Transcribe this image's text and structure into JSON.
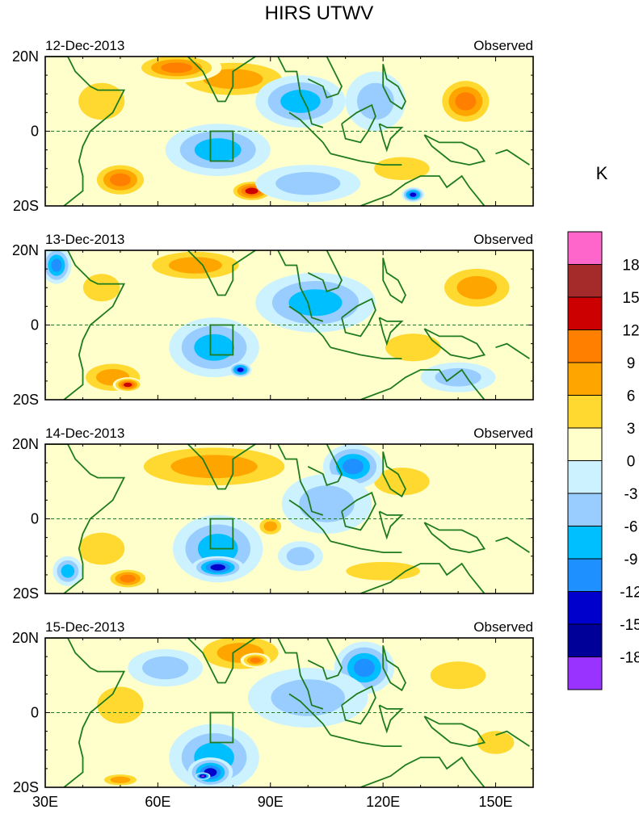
{
  "chart_data": {
    "type": "heatmap",
    "title": "HIRS UTWV",
    "x_ticks": [
      "30E",
      "60E",
      "90E",
      "120E",
      "150E"
    ],
    "x_tick_values": [
      30,
      60,
      90,
      120,
      150
    ],
    "xlim": [
      30,
      160
    ],
    "y_ticks": [
      "20N",
      "0",
      "20S"
    ],
    "y_tick_values": [
      20,
      0,
      -20
    ],
    "ylim": [
      -20,
      20
    ],
    "colorbar": {
      "unit": "K",
      "levels": [
        "18",
        "15",
        "12",
        "9",
        "6",
        "3",
        "0",
        "-3",
        "-6",
        "-9",
        "-12",
        "-15",
        "-18"
      ],
      "colors": [
        "#ff66cc",
        "#a52a2a",
        "#cc0000",
        "#ff7f00",
        "#ffa500",
        "#ffd92f",
        "#ffffcc",
        "#ccf2ff",
        "#99ccff",
        "#00bfff",
        "#1e90ff",
        "#0000cd",
        "#000099",
        "#9933ff"
      ]
    },
    "box_region": {
      "lon": [
        74,
        80
      ],
      "lat": [
        -8,
        0
      ]
    },
    "panels": [
      {
        "date": "12-Dec-2013",
        "label": "Observed",
        "blobs": [
          {
            "lon": 80,
            "lat": 14,
            "rx": 18,
            "ry": 6,
            "v": 8
          },
          {
            "lon": 65,
            "lat": 17,
            "rx": 12,
            "ry": 4,
            "v": 10
          },
          {
            "lon": 45,
            "lat": 8,
            "rx": 10,
            "ry": 8,
            "v": 5
          },
          {
            "lon": 50,
            "lat": -13,
            "rx": 8,
            "ry": 5,
            "v": 11
          },
          {
            "lon": 85,
            "lat": -16,
            "rx": 6,
            "ry": 3,
            "v": 13
          },
          {
            "lon": 142,
            "lat": 8,
            "rx": 8,
            "ry": 7,
            "v": 12
          },
          {
            "lon": 125,
            "lat": -10,
            "rx": 12,
            "ry": 5,
            "v": 6
          },
          {
            "lon": 76,
            "lat": -5,
            "rx": 14,
            "ry": 7,
            "v": -9
          },
          {
            "lon": 98,
            "lat": 8,
            "rx": 12,
            "ry": 7,
            "v": -8
          },
          {
            "lon": 118,
            "lat": 8,
            "rx": 8,
            "ry": 8,
            "v": -6
          },
          {
            "lon": 128,
            "lat": -17,
            "rx": 3,
            "ry": 2,
            "v": -14
          },
          {
            "lon": 100,
            "lat": -14,
            "rx": 14,
            "ry": 5,
            "v": -4
          }
        ]
      },
      {
        "date": "13-Dec-2013",
        "label": "Observed",
        "blobs": [
          {
            "lon": 70,
            "lat": 16,
            "rx": 16,
            "ry": 5,
            "v": 8
          },
          {
            "lon": 45,
            "lat": 10,
            "rx": 8,
            "ry": 6,
            "v": 5
          },
          {
            "lon": 48,
            "lat": -14,
            "rx": 10,
            "ry": 5,
            "v": 9
          },
          {
            "lon": 52,
            "lat": -16,
            "rx": 4,
            "ry": 2,
            "v": 13
          },
          {
            "lon": 145,
            "lat": 10,
            "rx": 12,
            "ry": 7,
            "v": 9
          },
          {
            "lon": 128,
            "lat": -6,
            "rx": 12,
            "ry": 6,
            "v": 5
          },
          {
            "lon": 75,
            "lat": -6,
            "rx": 12,
            "ry": 8,
            "v": -9
          },
          {
            "lon": 82,
            "lat": -12,
            "rx": 3,
            "ry": 2,
            "v": -13
          },
          {
            "lon": 102,
            "lat": 6,
            "rx": 16,
            "ry": 8,
            "v": -7
          },
          {
            "lon": 33,
            "lat": 16,
            "rx": 4,
            "ry": 5,
            "v": -11
          },
          {
            "lon": 140,
            "lat": -14,
            "rx": 10,
            "ry": 4,
            "v": -4
          }
        ]
      },
      {
        "date": "14-Dec-2013",
        "label": "Observed",
        "blobs": [
          {
            "lon": 75,
            "lat": 14,
            "rx": 26,
            "ry": 7,
            "v": 7
          },
          {
            "lon": 45,
            "lat": -8,
            "rx": 10,
            "ry": 7,
            "v": 4
          },
          {
            "lon": 52,
            "lat": -16,
            "rx": 6,
            "ry": 3,
            "v": 11
          },
          {
            "lon": 90,
            "lat": -2,
            "rx": 4,
            "ry": 3,
            "v": 7
          },
          {
            "lon": 125,
            "lat": 10,
            "rx": 12,
            "ry": 6,
            "v": 5
          },
          {
            "lon": 120,
            "lat": -14,
            "rx": 16,
            "ry": 4,
            "v": 4
          },
          {
            "lon": 76,
            "lat": -8,
            "rx": 12,
            "ry": 9,
            "v": -9
          },
          {
            "lon": 76,
            "lat": -13,
            "rx": 7,
            "ry": 3,
            "v": -14
          },
          {
            "lon": 112,
            "lat": 14,
            "rx": 8,
            "ry": 6,
            "v": -11
          },
          {
            "lon": 105,
            "lat": 4,
            "rx": 12,
            "ry": 8,
            "v": -6
          },
          {
            "lon": 98,
            "lat": -10,
            "rx": 6,
            "ry": 4,
            "v": -6
          },
          {
            "lon": 36,
            "lat": -14,
            "rx": 4,
            "ry": 4,
            "v": -8
          }
        ]
      },
      {
        "date": "15-Dec-2013",
        "label": "Observed",
        "blobs": [
          {
            "lon": 82,
            "lat": 16,
            "rx": 14,
            "ry": 6,
            "v": 8
          },
          {
            "lon": 86,
            "lat": 14,
            "rx": 4,
            "ry": 2,
            "v": 12
          },
          {
            "lon": 50,
            "lat": 2,
            "rx": 10,
            "ry": 8,
            "v": 4
          },
          {
            "lon": 50,
            "lat": -18,
            "rx": 6,
            "ry": 2,
            "v": 8
          },
          {
            "lon": 140,
            "lat": 10,
            "rx": 12,
            "ry": 6,
            "v": 5
          },
          {
            "lon": 150,
            "lat": -8,
            "rx": 8,
            "ry": 5,
            "v": 4
          },
          {
            "lon": 75,
            "lat": -12,
            "rx": 12,
            "ry": 9,
            "v": -9
          },
          {
            "lon": 74,
            "lat": -16,
            "rx": 6,
            "ry": 4,
            "v": -14
          },
          {
            "lon": 72,
            "lat": -17,
            "rx": 2,
            "ry": 1,
            "v": -19
          },
          {
            "lon": 115,
            "lat": 12,
            "rx": 8,
            "ry": 7,
            "v": -11
          },
          {
            "lon": 100,
            "lat": 4,
            "rx": 16,
            "ry": 8,
            "v": -5
          },
          {
            "lon": 62,
            "lat": 12,
            "rx": 10,
            "ry": 5,
            "v": -6
          }
        ]
      }
    ]
  }
}
